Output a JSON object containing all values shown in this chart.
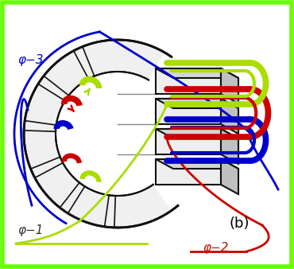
{
  "bg_color": "#ffffff",
  "border_color": "#66ff00",
  "border_lw": 4,
  "label_phi1": "φ−1",
  "label_phi2": "φ−2",
  "label_phi3": "φ−3",
  "label_b": "(b)",
  "color_green": "#aadd00",
  "color_red": "#cc0000",
  "color_blue": "#0000cc",
  "color_stator": "#111111",
  "fig_width": 3.7,
  "fig_height": 3.38,
  "dpi": 100
}
